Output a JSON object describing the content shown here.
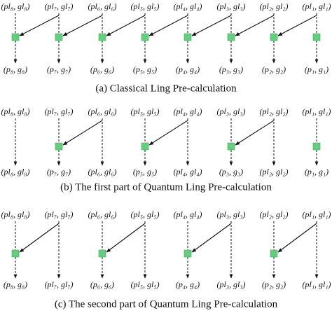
{
  "panels": [
    {
      "caption": "(a) Classical Ling Pre-calculation",
      "top": [
        "(pl₈, gl₈)",
        "(pl₇, gl₇)",
        "(pl₆, gl₆)",
        "(pl₅, gl₅)",
        "(pl₄, gl₄)",
        "(pl₃, gl₃)",
        "(pl₂, gl₂)",
        "(pl₁, gl₁)"
      ],
      "bottom": [
        "(p₈, g₈)",
        "(p₇, g₇)",
        "(p₆, g₆)",
        "(p₅, g₅)",
        "(p₄, g₄)",
        "(p₃, g₃)",
        "(p₂, g₂)",
        "(p₁, g₁)"
      ]
    },
    {
      "caption": "(b) The first part of Quantum Ling Pre-calculation",
      "top": [
        "(pl₈, gl₈)",
        "(pl₇, gl₇)",
        "(pl₆, gl₆)",
        "(pl₅, gl₅)",
        "(pl₄, gl₄)",
        "(pl₃, gl₃)",
        "(pl₂, gl₂)",
        "(pl₁, gl₁)"
      ],
      "bottom": [
        "(pl₈, gl₈)",
        "(p₇, g₇)",
        "(pl₆, gl₆)",
        "(p₅, g₅)",
        "(pl₄, gl₄)",
        "(p₃, g₃)",
        "(pl₂, gl₂)",
        "(p₁, g₁)"
      ]
    },
    {
      "caption": "(c) The second part of Quantum Ling Pre-calculation",
      "top": [
        "(pl₈, gl₈)",
        "(pl₇, gl₇)",
        "(pl₆, gl₆)",
        "(pl₅, gl₅)",
        "(pl₄, gl₄)",
        "(pl₃, gl₃)",
        "(pl₂, gl₂)",
        "(pl₁, gl₁)"
      ],
      "bottom": [
        "(p₈, g₈)",
        "(pl₇, gl₇)",
        "(p₆, g₆)",
        "(pl₅, gl₅)",
        "(p₄, g₄)",
        "(pl₃, gl₃)",
        "(p₂, g₂)",
        "(pl₁, gl₁)"
      ]
    }
  ]
}
